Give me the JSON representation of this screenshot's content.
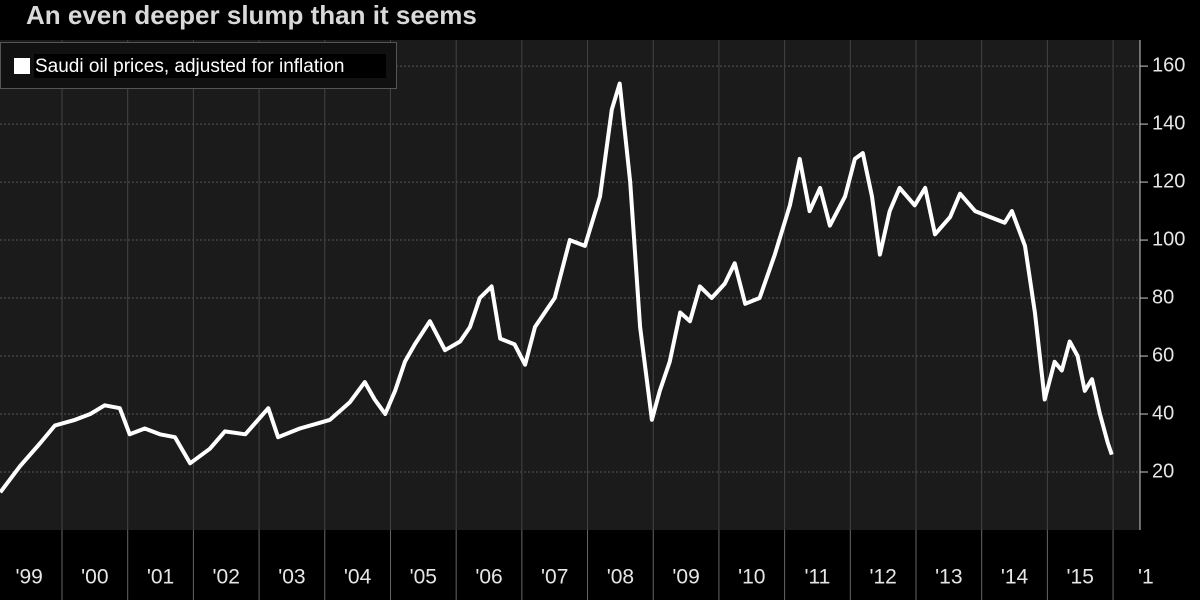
{
  "chart_data": {
    "type": "line",
    "title": "An even deeper slump than it seems",
    "series": [
      {
        "name": "Saudi oil prices, adjusted for inflation",
        "color": "#ffffff",
        "x": [
          1999.06,
          1999.36,
          1999.67,
          1999.89,
          2000.2,
          2000.43,
          2000.65,
          2000.88,
          2001.03,
          2001.26,
          2001.49,
          2001.72,
          2001.95,
          2002.25,
          2002.48,
          2002.79,
          2003.14,
          2003.29,
          2003.62,
          2003.93,
          2004.08,
          2004.38,
          2004.61,
          2004.76,
          2004.92,
          2005.07,
          2005.22,
          2005.37,
          2005.6,
          2005.83,
          2006.06,
          2006.21,
          2006.36,
          2006.54,
          2006.67,
          2006.89,
          2007.05,
          2007.2,
          2007.35,
          2007.5,
          2007.73,
          2007.96,
          2008.19,
          2008.37,
          2008.49,
          2008.65,
          2008.8,
          2008.98,
          2009.1,
          2009.25,
          2009.41,
          2009.56,
          2009.71,
          2009.89,
          2010.09,
          2010.24,
          2010.4,
          2010.62,
          2010.85,
          2011.08,
          2011.23,
          2011.38,
          2011.54,
          2011.69,
          2011.92,
          2012.07,
          2012.19,
          2012.33,
          2012.45,
          2012.6,
          2012.75,
          2012.98,
          2013.14,
          2013.29,
          2013.52,
          2013.67,
          2013.9,
          2014.12,
          2014.35,
          2014.46,
          2014.66,
          2014.81,
          2014.96,
          2015.11,
          2015.22,
          2015.34,
          2015.46,
          2015.57,
          2015.68,
          2015.8,
          2015.92,
          2015.98
        ],
        "values": [
          13,
          22,
          30,
          36,
          38,
          40,
          43,
          42,
          33,
          35,
          33,
          32,
          23,
          28,
          34,
          33,
          42,
          32,
          35,
          37,
          38,
          44,
          51,
          45,
          40,
          48,
          58,
          64,
          72,
          62,
          65,
          70,
          80,
          84,
          66,
          64,
          57,
          70,
          75,
          80,
          100,
          98,
          115,
          145,
          154,
          120,
          70,
          38,
          48,
          58,
          75,
          72,
          84,
          80,
          85,
          92,
          78,
          80,
          95,
          112,
          128,
          110,
          118,
          105,
          115,
          128,
          130,
          115,
          95,
          110,
          118,
          112,
          118,
          102,
          108,
          116,
          110,
          108,
          106,
          110,
          98,
          75,
          45,
          58,
          55,
          65,
          60,
          48,
          52,
          40,
          30,
          26
        ]
      }
    ],
    "xlim": [
      1999.056,
      2016.41
    ],
    "xticks": [
      {
        "value": 1999,
        "label": "'99"
      },
      {
        "value": 2000,
        "label": "'00"
      },
      {
        "value": 2001,
        "label": "'01"
      },
      {
        "value": 2002,
        "label": "'02"
      },
      {
        "value": 2003,
        "label": "'03"
      },
      {
        "value": 2004,
        "label": "'04"
      },
      {
        "value": 2005,
        "label": "'05"
      },
      {
        "value": 2006,
        "label": "'06"
      },
      {
        "value": 2007,
        "label": "'07"
      },
      {
        "value": 2008,
        "label": "'08"
      },
      {
        "value": 2009,
        "label": "'09"
      },
      {
        "value": 2010,
        "label": "'10"
      },
      {
        "value": 2011,
        "label": "'11"
      },
      {
        "value": 2012,
        "label": "'12"
      },
      {
        "value": 2013,
        "label": "'13"
      },
      {
        "value": 2014,
        "label": "'14"
      },
      {
        "value": 2015,
        "label": "'15"
      },
      {
        "value": 2016,
        "label": "'1"
      }
    ],
    "ylim": [
      0,
      169
    ],
    "yticks": [
      20,
      40,
      60,
      80,
      100,
      120,
      140,
      160
    ],
    "grid": true,
    "legend": "top-left"
  }
}
